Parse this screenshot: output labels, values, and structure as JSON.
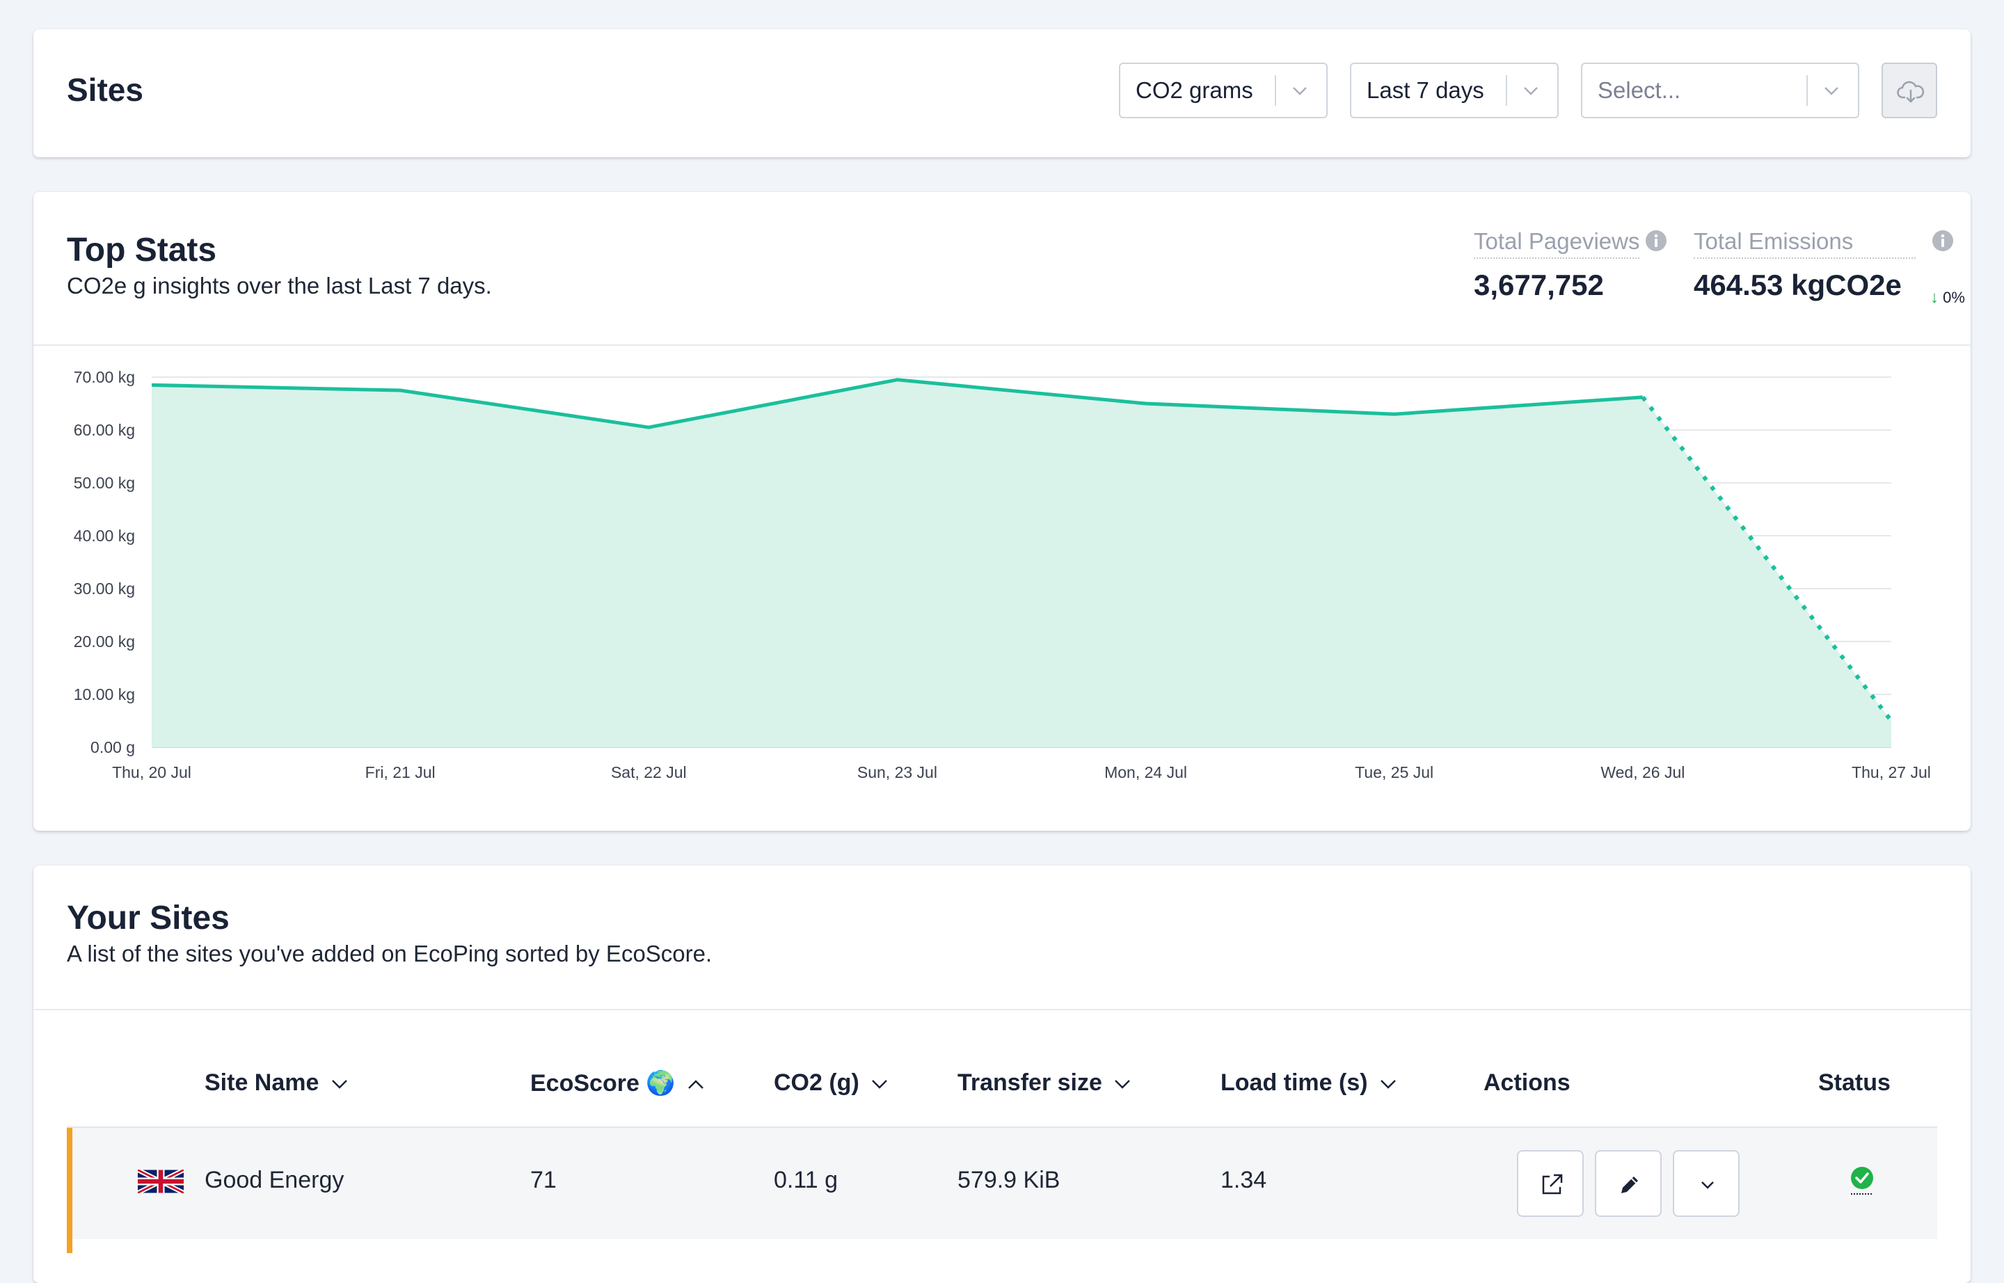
{
  "header": {
    "title": "Sites",
    "metric_select": {
      "value": "CO2 grams"
    },
    "range_select": {
      "value": "Last 7 days"
    },
    "site_select": {
      "placeholder": "Select..."
    },
    "download_icon": "cloud-download-icon"
  },
  "top_stats": {
    "title": "Top Stats",
    "subtitle": "CO2e g insights over the last Last 7 days.",
    "pageviews": {
      "label": "Total Pageviews",
      "value": "3,677,752"
    },
    "emissions": {
      "label": "Total Emissions",
      "value": "464.53 kgCO2e",
      "trend": "0%"
    }
  },
  "chart_data": {
    "type": "area",
    "x": [
      "Thu, 20 Jul",
      "Fri, 21 Jul",
      "Sat, 22 Jul",
      "Sun, 23 Jul",
      "Mon, 24 Jul",
      "Tue, 25 Jul",
      "Wed, 26 Jul",
      "Thu, 27 Jul"
    ],
    "values": [
      68.5,
      67.5,
      60.5,
      69.5,
      65.0,
      63.0,
      66.2,
      5.0
    ],
    "y_ticks": [
      "0.00 g",
      "10.00 kg",
      "20.00 kg",
      "30.00 kg",
      "40.00 kg",
      "50.00 kg",
      "60.00 kg",
      "70.00 kg"
    ],
    "ylim": [
      0,
      70
    ],
    "incomplete_last_segment": true,
    "grid": true,
    "colors": {
      "line": "#1bbf9c",
      "fill": "#d9f3ea"
    }
  },
  "your_sites": {
    "title": "Your Sites",
    "subtitle": "A list of the sites you've added on EcoPing sorted by EcoScore.",
    "columns": {
      "site_name": "Site Name",
      "ecoscore": "EcoScore 🌍",
      "co2": "CO2 (g)",
      "transfer": "Transfer size",
      "load_time": "Load time (s)",
      "actions": "Actions",
      "status": "Status"
    },
    "rows": [
      {
        "flag": "uk-flag-icon",
        "site_name": "Good Energy",
        "ecoscore": "71",
        "co2": "0.11 g",
        "transfer": "579.9 KiB",
        "load_time": "1.34",
        "status": "ok",
        "accent_color": "#f3a323"
      }
    ]
  }
}
